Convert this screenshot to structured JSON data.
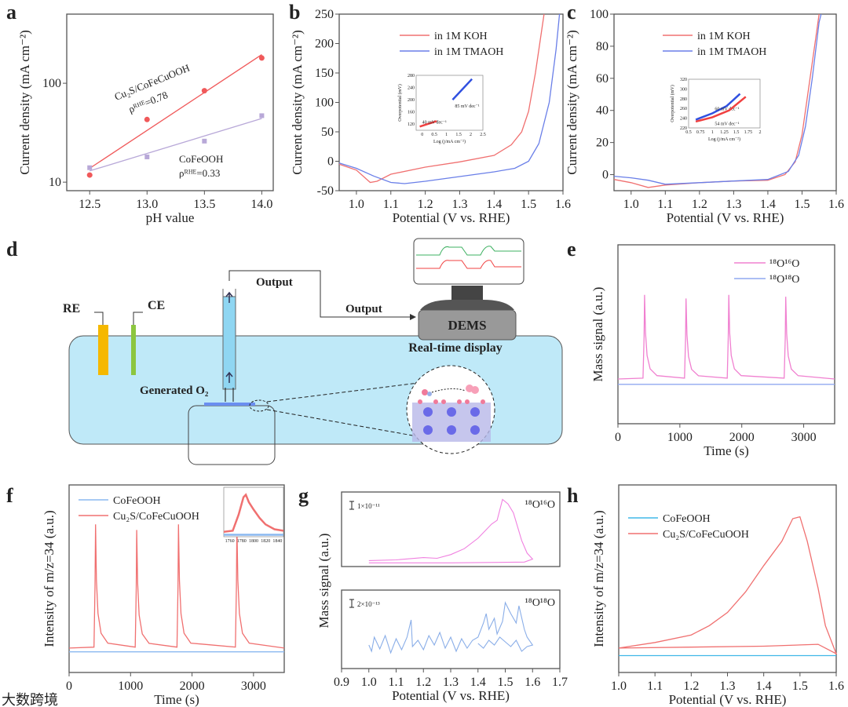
{
  "panel_labels": [
    "a",
    "b",
    "c",
    "d",
    "e",
    "f",
    "g",
    "h"
  ],
  "diagram": {
    "re": "RE",
    "ce": "CE",
    "output_1": "Output",
    "output_2": "Output",
    "dems": "DEMS",
    "display": "Real-time display",
    "generated": "Generated O₂",
    "colors": {
      "electrolyte": "#bfe9f8",
      "re": "#f5b800",
      "ce": "#8cc63f"
    }
  },
  "watermark": "大数跨境",
  "chart_data": [
    {
      "id": "a",
      "type": "scatter",
      "xlabel": "pH value",
      "ylabel": "Current density (mA cm⁻²)",
      "xlim": [
        12.3,
        14.1
      ],
      "ylim": [
        8.2,
        500
      ],
      "yscale": "log",
      "xticks": [
        12.5,
        13.0,
        13.5,
        14.0
      ],
      "yticks": [
        10,
        100
      ],
      "series": [
        {
          "name": "Cu₂S/CoFeCuOOH",
          "color": "#f0595a",
          "marker": "circle",
          "x": [
            12.5,
            13.0,
            13.5,
            14.0
          ],
          "y": [
            11.8,
            43,
            84,
            180
          ],
          "fit": [
            13.8,
            195
          ]
        },
        {
          "name": "CoFeOOH",
          "color": "#b8a8d8",
          "marker": "square",
          "x": [
            12.5,
            13.0,
            13.5,
            14.0
          ],
          "y": [
            14,
            18,
            26,
            47
          ],
          "fit": [
            13,
            44
          ]
        }
      ],
      "annotations": [
        "Cu₂S/CoFeCuOOH",
        "ρᴿᴴᴱ=0.78",
        "CoFeOOH",
        "ρᴿᴴᴱ=0.33"
      ]
    },
    {
      "id": "b",
      "type": "line",
      "xlabel": "Potential (V vs. RHE)",
      "ylabel": "Current density (mA cm⁻²)",
      "xlim": [
        0.95,
        1.6
      ],
      "ylim": [
        -50,
        250
      ],
      "xticks": [
        1.0,
        1.1,
        1.2,
        1.3,
        1.4,
        1.5,
        1.6
      ],
      "yticks": [
        -50,
        0,
        50,
        100,
        150,
        200,
        250
      ],
      "legend": "top-center",
      "series": [
        {
          "name": "in 1M KOH",
          "color": "#f07070",
          "points": [
            [
              0.95,
              -5
            ],
            [
              1.0,
              -15
            ],
            [
              1.04,
              -36
            ],
            [
              1.06,
              -34
            ],
            [
              1.1,
              -22
            ],
            [
              1.2,
              -10
            ],
            [
              1.3,
              -1
            ],
            [
              1.4,
              10
            ],
            [
              1.45,
              28
            ],
            [
              1.48,
              50
            ],
            [
              1.5,
              85
            ],
            [
              1.52,
              150
            ],
            [
              1.535,
              210
            ],
            [
              1.545,
              250
            ]
          ]
        },
        {
          "name": "in 1M TMAOH",
          "color": "#6a7fe8",
          "points": [
            [
              0.95,
              -3
            ],
            [
              1.0,
              -12
            ],
            [
              1.05,
              -25
            ],
            [
              1.1,
              -36
            ],
            [
              1.14,
              -38
            ],
            [
              1.2,
              -34
            ],
            [
              1.3,
              -26
            ],
            [
              1.4,
              -18
            ],
            [
              1.46,
              -12
            ],
            [
              1.5,
              0
            ],
            [
              1.53,
              30
            ],
            [
              1.56,
              100
            ],
            [
              1.58,
              190
            ],
            [
              1.59,
              250
            ]
          ]
        }
      ],
      "inset": {
        "xlabel": "Log (j/mA cm⁻²)",
        "ylabel": "Overpotential (mV)",
        "xlim": [
          -0.25,
          2.5
        ],
        "ylim": [
          100,
          280
        ],
        "xticks": [
          0.0,
          0.5,
          1.0,
          1.5,
          2.0,
          2.5
        ],
        "yticks": [
          120,
          160,
          200,
          240,
          280
        ],
        "series": [
          {
            "name": "KOH",
            "color": "#f04040",
            "points": [
              [
                -0.1,
                112
              ],
              [
                0.6,
                130
              ]
            ],
            "label": "40 mV dec⁻¹"
          },
          {
            "name": "TMAOH",
            "color": "#3050e0",
            "points": [
              [
                1.25,
                200
              ],
              [
                2.05,
                268
              ]
            ],
            "label": "85 mV dec⁻¹"
          }
        ]
      }
    },
    {
      "id": "c",
      "type": "line",
      "xlabel": "Potential (V vs. RHE)",
      "ylabel": "Current density (mA cm⁻²)",
      "xlim": [
        0.95,
        1.6
      ],
      "ylim": [
        -10,
        100
      ],
      "xticks": [
        1.0,
        1.1,
        1.2,
        1.3,
        1.4,
        1.5,
        1.6
      ],
      "yticks": [
        0,
        20,
        40,
        60,
        80,
        100
      ],
      "legend": "top-center",
      "series": [
        {
          "name": "in 1M KOH",
          "color": "#f07070",
          "points": [
            [
              0.95,
              -3
            ],
            [
              1.0,
              -5
            ],
            [
              1.05,
              -8
            ],
            [
              1.1,
              -6.5
            ],
            [
              1.2,
              -5
            ],
            [
              1.3,
              -4
            ],
            [
              1.4,
              -3.5
            ],
            [
              1.45,
              0
            ],
            [
              1.48,
              8
            ],
            [
              1.5,
              25
            ],
            [
              1.52,
              55
            ],
            [
              1.54,
              85
            ],
            [
              1.55,
              100
            ]
          ]
        },
        {
          "name": "in 1M TMAOH",
          "color": "#6a7fe8",
          "points": [
            [
              0.95,
              -1
            ],
            [
              1.0,
              -2
            ],
            [
              1.05,
              -3.5
            ],
            [
              1.1,
              -6
            ],
            [
              1.2,
              -5
            ],
            [
              1.3,
              -4
            ],
            [
              1.4,
              -3
            ],
            [
              1.46,
              2
            ],
            [
              1.49,
              12
            ],
            [
              1.51,
              30
            ],
            [
              1.53,
              60
            ],
            [
              1.55,
              95
            ],
            [
              1.556,
              100
            ]
          ]
        }
      ],
      "inset": {
        "xlabel": "Log (j/mA cm⁻²)",
        "ylabel": "Overpotential (mV)",
        "xlim": [
          0.5,
          2.0
        ],
        "ylim": [
          220,
          320
        ],
        "xticks": [
          0.5,
          0.75,
          1.0,
          1.25,
          1.5,
          1.75,
          2.0
        ],
        "yticks": [
          220,
          240,
          260,
          280,
          300,
          320
        ],
        "series": [
          {
            "name": "TMAOH",
            "color": "#3050e0",
            "points": [
              [
                0.65,
                237
              ],
              [
                1.0,
                250
              ],
              [
                1.3,
                265
              ],
              [
                1.58,
                290
              ]
            ],
            "label": "60 mV dec⁻¹"
          },
          {
            "name": "KOH",
            "color": "#f04040",
            "points": [
              [
                0.65,
                233
              ],
              [
                1.0,
                242
              ],
              [
                1.35,
                256
              ],
              [
                1.7,
                284
              ]
            ],
            "label": "54 mV dec⁻¹"
          }
        ]
      }
    },
    {
      "id": "e",
      "type": "line",
      "xlabel": "Time (s)",
      "ylabel": "Mass signal (a.u.)",
      "xlim": [
        0,
        3500
      ],
      "ylim": [
        0,
        100
      ],
      "xticks": [
        0,
        1000,
        2000,
        3000
      ],
      "legend": "top-right",
      "series": [
        {
          "name": "¹⁸O¹⁶O",
          "color": "#f080d0",
          "baseline": 25,
          "peaks": [
            [
              430,
              72
            ],
            [
              1100,
              70
            ],
            [
              1790,
              72
            ],
            [
              2710,
              71
            ]
          ]
        },
        {
          "name": "¹⁸O¹⁸O",
          "color": "#90a8f0",
          "baseline": 22,
          "peaks": []
        }
      ]
    },
    {
      "id": "f",
      "type": "line",
      "xlabel": "Time (s)",
      "ylabel": "Intensity of m/z=34 (a.u.)",
      "xlim": [
        0,
        3500
      ],
      "ylim": [
        0,
        100
      ],
      "xticks": [
        0,
        1000,
        2000,
        3000
      ],
      "legend": "top-left",
      "series": [
        {
          "name": "CoFeOOH",
          "color": "#8ab8f0",
          "baseline": 11,
          "peaks": []
        },
        {
          "name": "Cu₂S/CoFeCuOOH",
          "color": "#f07070",
          "baseline": 13,
          "peaks": [
            [
              430,
              79
            ],
            [
              1100,
              76
            ],
            [
              1780,
              79
            ],
            [
              2730,
              79
            ]
          ]
        }
      ],
      "inset": {
        "xlim": [
          1750,
          1850
        ],
        "ylim": [
          0,
          100
        ],
        "xticks": [
          1760,
          1780,
          1800,
          1820,
          1840
        ],
        "series": [
          {
            "name": "Cu₂S/CoFeCuOOH",
            "color": "#f07070",
            "points": [
              [
                1750,
                10
              ],
              [
                1765,
                12
              ],
              [
                1775,
                45
              ],
              [
                1783,
                80
              ],
              [
                1787,
                85
              ],
              [
                1792,
                70
              ],
              [
                1800,
                55
              ],
              [
                1810,
                38
              ],
              [
                1820,
                25
              ],
              [
                1835,
                15
              ],
              [
                1850,
                12
              ]
            ]
          },
          {
            "name": "CoFeOOH",
            "color": "#8ab8f0",
            "points": [
              [
                1750,
                4
              ],
              [
                1850,
                4
              ]
            ]
          }
        ]
      }
    },
    {
      "id": "g",
      "type": "line",
      "xlabel": "Potential (V vs. RHE)",
      "ylabel": "Mass signal (a.u.)",
      "xlim": [
        0.9,
        1.7
      ],
      "xticks": [
        0.9,
        1.0,
        1.1,
        1.2,
        1.3,
        1.4,
        1.5,
        1.6,
        1.7
      ],
      "subplots": [
        {
          "label": "¹⁸O¹⁶O",
          "scale": "1×10⁻¹¹",
          "color": "#f080e0",
          "ylim": [
            0,
            100
          ],
          "points": [
            [
              1.0,
              8
            ],
            [
              1.1,
              9
            ],
            [
              1.2,
              12
            ],
            [
              1.25,
              11
            ],
            [
              1.3,
              16
            ],
            [
              1.35,
              24
            ],
            [
              1.4,
              38
            ],
            [
              1.45,
              57
            ],
            [
              1.47,
              62
            ],
            [
              1.49,
              90
            ],
            [
              1.51,
              84
            ],
            [
              1.53,
              72
            ],
            [
              1.56,
              35
            ],
            [
              1.58,
              18
            ],
            [
              1.6,
              10
            ],
            [
              1.57,
              6
            ],
            [
              1.3,
              5
            ],
            [
              1.0,
              5
            ]
          ]
        },
        {
          "label": "¹⁸O¹⁸O",
          "scale": "2×10⁻¹³",
          "color": "#8aaee8",
          "ylim": [
            0,
            100
          ],
          "points": [
            [
              1.0,
              30
            ],
            [
              1.01,
              22
            ],
            [
              1.02,
              40
            ],
            [
              1.04,
              25
            ],
            [
              1.06,
              42
            ],
            [
              1.08,
              20
            ],
            [
              1.1,
              38
            ],
            [
              1.12,
              24
            ],
            [
              1.14,
              40
            ],
            [
              1.155,
              62
            ],
            [
              1.16,
              28
            ],
            [
              1.18,
              36
            ],
            [
              1.2,
              24
            ],
            [
              1.22,
              42
            ],
            [
              1.24,
              30
            ],
            [
              1.26,
              46
            ],
            [
              1.28,
              26
            ],
            [
              1.3,
              40
            ],
            [
              1.32,
              22
            ],
            [
              1.34,
              38
            ],
            [
              1.36,
              26
            ],
            [
              1.38,
              36
            ],
            [
              1.4,
              40
            ],
            [
              1.42,
              58
            ],
            [
              1.43,
              70
            ],
            [
              1.44,
              50
            ],
            [
              1.46,
              64
            ],
            [
              1.47,
              44
            ],
            [
              1.49,
              60
            ],
            [
              1.5,
              84
            ],
            [
              1.52,
              70
            ],
            [
              1.54,
              58
            ],
            [
              1.55,
              80
            ],
            [
              1.57,
              50
            ],
            [
              1.58,
              40
            ],
            [
              1.6,
              30
            ],
            [
              1.58,
              28
            ],
            [
              1.56,
              22
            ],
            [
              1.54,
              36
            ],
            [
              1.52,
              28
            ],
            [
              1.5,
              34
            ],
            [
              1.48,
              40
            ],
            [
              1.46,
              30
            ],
            [
              1.44,
              36
            ],
            [
              1.42,
              26
            ],
            [
              1.4,
              32
            ]
          ]
        }
      ]
    },
    {
      "id": "h",
      "type": "line",
      "xlabel": "Potential (V vs. RHE)",
      "ylabel": "Intensity of m/z=34 (a.u.)",
      "xlim": [
        1.0,
        1.6
      ],
      "ylim": [
        0,
        100
      ],
      "xticks": [
        1.0,
        1.1,
        1.2,
        1.3,
        1.4,
        1.5,
        1.6
      ],
      "legend": "top-left",
      "series": [
        {
          "name": "CoFeOOH",
          "color": "#40b8e8",
          "points": [
            [
              1.0,
              9
            ],
            [
              1.6,
              9
            ]
          ]
        },
        {
          "name": "Cu₂S/CoFeCuOOH",
          "color": "#f07070",
          "points": [
            [
              1.0,
              13
            ],
            [
              1.2,
              13.5
            ],
            [
              1.4,
              14
            ],
            [
              1.55,
              15
            ],
            [
              1.6,
              10
            ],
            [
              1.57,
              25
            ],
            [
              1.55,
              45
            ],
            [
              1.52,
              70
            ],
            [
              1.5,
              83
            ],
            [
              1.48,
              82
            ],
            [
              1.45,
              70
            ],
            [
              1.4,
              57
            ],
            [
              1.35,
              43
            ],
            [
              1.3,
              32
            ],
            [
              1.25,
              25
            ],
            [
              1.2,
              20
            ],
            [
              1.1,
              16
            ],
            [
              1.0,
              13
            ]
          ]
        }
      ]
    }
  ]
}
